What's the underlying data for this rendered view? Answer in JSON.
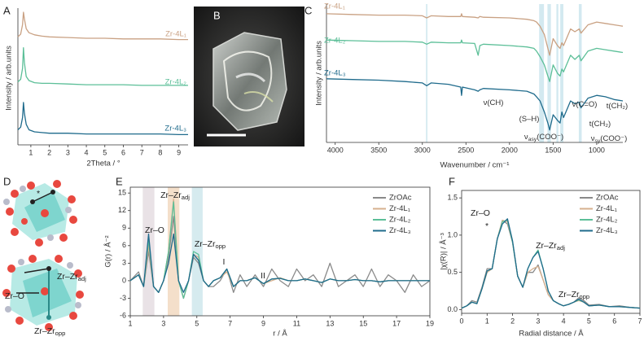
{
  "chart_data": [
    {
      "type": "line",
      "panel_label": "A",
      "xlabel": "2Theta / °",
      "ylabel": "Intensity / arb.units",
      "xlim": [
        0.3,
        9.5
      ],
      "xticks": [
        1,
        2,
        3,
        4,
        5,
        6,
        7,
        8,
        9
      ],
      "ylim": [
        0,
        10
      ],
      "x": [
        0.3,
        0.45,
        0.55,
        0.6,
        0.65,
        0.75,
        0.9,
        1.2,
        1.6,
        2,
        3,
        4,
        5,
        6,
        7,
        8,
        9,
        9.5
      ],
      "series": [
        {
          "name": "Zr-4L₁",
          "color": "#c9a183",
          "values": [
            7.9,
            8.1,
            8.8,
            9.7,
            9.2,
            8.5,
            8.2,
            8.05,
            7.95,
            7.9,
            7.85,
            7.8,
            7.8,
            7.75,
            7.75,
            7.75,
            7.7,
            7.7
          ]
        },
        {
          "name": "Zr-4L₂",
          "color": "#5cbf98",
          "values": [
            4.6,
            4.8,
            5.6,
            7.1,
            6.0,
            5.0,
            4.7,
            4.55,
            4.5,
            4.5,
            4.45,
            4.4,
            4.4,
            4.4,
            4.35,
            4.35,
            4.35,
            4.35
          ]
        },
        {
          "name": "Zr-4L₃",
          "color": "#1f6b8c",
          "values": [
            1.1,
            1.3,
            2.0,
            3.1,
            2.3,
            1.5,
            1.1,
            0.95,
            0.9,
            0.85,
            0.85,
            0.8,
            0.8,
            0.8,
            0.8,
            0.8,
            0.75,
            0.75
          ]
        }
      ]
    },
    {
      "type": "line",
      "panel_label": "C",
      "xlabel": "Wavenumber / cm⁻¹",
      "ylabel": "Intensity / arb.units",
      "xlim": [
        4100,
        700
      ],
      "xticks": [
        4000,
        3500,
        3000,
        2500,
        2000,
        1500,
        1000
      ],
      "ylim": [
        0,
        10
      ],
      "highlight_bands": [
        {
          "from": 2958,
          "to": 2942,
          "color": "#d3e9f0"
        },
        {
          "from": 1660,
          "to": 1605,
          "color": "#d3e9f0"
        },
        {
          "from": 1565,
          "to": 1525,
          "color": "#d3e9f0"
        },
        {
          "from": 1462,
          "to": 1440,
          "color": "#d3e9f0"
        },
        {
          "from": 1418,
          "to": 1382,
          "color": "#d3e9f0"
        },
        {
          "from": 1205,
          "to": 1172,
          "color": "#d3e9f0"
        }
      ],
      "x": [
        4100,
        3800,
        3500,
        3200,
        3000,
        2950,
        2900,
        2700,
        2560,
        2550,
        2540,
        2400,
        2360,
        2340,
        2300,
        2000,
        1800,
        1720,
        1690,
        1650,
        1600,
        1560,
        1540,
        1500,
        1450,
        1420,
        1400,
        1380,
        1300,
        1250,
        1200,
        1180,
        1100,
        1000,
        900,
        800,
        700
      ],
      "series": [
        {
          "name": "Zr-4L₁",
          "color": "#c9a183",
          "values": [
            9.3,
            9.25,
            9.2,
            9.2,
            9.15,
            9.0,
            9.15,
            9.1,
            9.1,
            9.3,
            9.1,
            9.05,
            9.0,
            9.1,
            9.05,
            9.0,
            8.9,
            8.8,
            8.7,
            8.4,
            7.8,
            6.8,
            6.3,
            7.5,
            7.0,
            6.8,
            7.2,
            7.0,
            8.2,
            8.0,
            8.2,
            7.9,
            8.5,
            8.7,
            8.6,
            8.5,
            8.4
          ]
        },
        {
          "name": "Zr-4L₂",
          "color": "#5cbf98",
          "values": [
            7.4,
            7.35,
            7.3,
            7.3,
            7.25,
            7.1,
            7.25,
            7.2,
            7.2,
            7.4,
            7.2,
            7.15,
            6.3,
            7.0,
            7.1,
            7.0,
            6.9,
            6.8,
            6.6,
            6.2,
            5.6,
            4.8,
            4.4,
            5.6,
            5.0,
            4.8,
            5.3,
            5.1,
            6.3,
            6.0,
            6.3,
            5.9,
            6.6,
            6.8,
            6.7,
            6.6,
            6.5
          ]
        },
        {
          "name": "Zr-4L₃",
          "color": "#1f6b8c",
          "values": [
            4.6,
            4.55,
            4.5,
            4.4,
            4.3,
            4.1,
            4.3,
            4.2,
            4.0,
            3.4,
            4.0,
            3.8,
            3.7,
            3.8,
            3.9,
            3.8,
            3.7,
            3.5,
            3.3,
            3.0,
            2.2,
            1.4,
            0.9,
            2.0,
            1.6,
            1.4,
            2.2,
            1.8,
            3.0,
            2.8,
            2.9,
            2.5,
            3.2,
            3.4,
            3.3,
            3.1,
            3.0
          ]
        }
      ],
      "annotations": [
        {
          "text": "ν(CH)"
        },
        {
          "text": "(S–H)"
        },
        {
          "text": "ν(C=O)"
        },
        {
          "text": "t(CH₂)"
        },
        {
          "text": "t(CH₂)"
        },
        {
          "text": "ν",
          "sub": "asy",
          "tail": "(COO⁻)"
        },
        {
          "text": "ν",
          "sub": "sy",
          "tail": "(COO⁻)"
        }
      ]
    },
    {
      "type": "line",
      "panel_label": "E",
      "xlabel": "r / Å",
      "ylabel": "G(r) / Å⁻²",
      "xlim": [
        1,
        19
      ],
      "xticks": [
        1,
        3,
        5,
        7,
        9,
        11,
        13,
        15,
        17,
        19
      ],
      "ylim": [
        -6,
        16
      ],
      "yticks": [
        -6,
        -3,
        0,
        3,
        6,
        9,
        12,
        15
      ],
      "highlight_bands": [
        {
          "from": 1.75,
          "to": 2.45,
          "color": "#e9e2e6"
        },
        {
          "from": 3.25,
          "to": 3.95,
          "color": "#f4dfca"
        },
        {
          "from": 4.7,
          "to": 5.35,
          "color": "#d6ebef"
        }
      ],
      "x": [
        1,
        1.5,
        1.8,
        2.1,
        2.4,
        2.7,
        3.0,
        3.3,
        3.6,
        3.9,
        4.2,
        4.5,
        4.8,
        5.1,
        5.4,
        5.7,
        6.0,
        6.4,
        6.8,
        7.2,
        7.6,
        8,
        8.5,
        9,
        9.5,
        10,
        10.5,
        11,
        11.5,
        12,
        12.5,
        13,
        13.5,
        14,
        14.5,
        15,
        15.5,
        16,
        16.5,
        17,
        17.5,
        18,
        18.5,
        19
      ],
      "series": [
        {
          "name": "ZrOAc",
          "color": "#8a8a8a",
          "values": [
            0,
            1.5,
            -1,
            5,
            -1,
            -2,
            0,
            4,
            11,
            0,
            -3,
            0,
            4,
            3,
            0,
            -1,
            -1,
            0,
            2,
            -2,
            1,
            -1,
            1,
            -1,
            2,
            0,
            -1,
            2,
            0,
            1,
            -1,
            3,
            -1,
            0,
            1,
            -1,
            2,
            -1,
            1,
            0,
            -2,
            1,
            -1,
            0
          ]
        },
        {
          "name": "Zr-4L₁",
          "color": "#d6b08e",
          "values": [
            0,
            1,
            -1,
            6,
            -1,
            -2,
            0,
            5,
            14,
            0,
            -3,
            0,
            4.5,
            4,
            0,
            -1,
            0,
            0.5,
            1.5,
            -1,
            0,
            0,
            0.5,
            -0.5,
            0,
            0.5,
            0,
            0,
            0.3,
            0,
            -0.3,
            0.3,
            0,
            0,
            0.2,
            0,
            0,
            -0.2,
            0,
            0,
            0,
            0,
            0,
            0
          ]
        },
        {
          "name": "Zr-4L₂",
          "color": "#5cbf98",
          "values": [
            0,
            1,
            -1,
            7,
            -1,
            -2,
            0,
            5,
            13.5,
            0,
            -3,
            0,
            5,
            4.5,
            0,
            -1,
            0,
            0.5,
            2,
            -1,
            0,
            0,
            0.5,
            -0.5,
            0.3,
            0.4,
            0,
            0,
            0.3,
            0,
            -0.3,
            0.3,
            0,
            0,
            0.2,
            0,
            0,
            -0.2,
            0,
            0,
            0,
            0,
            0,
            0
          ]
        },
        {
          "name": "Zr-4L₃",
          "color": "#1f6b8c",
          "values": [
            0,
            1,
            -1,
            8,
            -1,
            -2,
            0,
            3,
            8,
            0,
            -2,
            0,
            4.5,
            3.5,
            0,
            -1,
            0,
            0.5,
            2,
            -1,
            0,
            0,
            0.5,
            -0.5,
            0.3,
            0.4,
            0,
            0,
            0.3,
            0,
            -0.3,
            0.3,
            0,
            0,
            0.2,
            0,
            0,
            -0.2,
            0,
            0,
            0,
            0,
            0,
            0
          ]
        }
      ],
      "annotations": [
        {
          "text": "Zr–O"
        },
        {
          "text": "Zr–Zr",
          "sub": "adj"
        },
        {
          "text": "Zr–Zr",
          "sub": "opp"
        },
        {
          "text": "I"
        },
        {
          "text": "II"
        }
      ]
    },
    {
      "type": "line",
      "panel_label": "F",
      "xlabel": "Radial distance / Å",
      "ylabel": "|χ(R)| / Å⁻³",
      "xlim": [
        0,
        7
      ],
      "xticks": [
        0,
        1,
        2,
        3,
        4,
        5,
        6,
        7
      ],
      "ylim": [
        -0.05,
        1.6
      ],
      "yticks": [
        {
          "value": 0,
          "label": "0.0"
        },
        0.5,
        {
          "value": 1,
          "label": "1.0"
        },
        1.5
      ],
      "x": [
        0,
        0.2,
        0.4,
        0.6,
        0.8,
        1.0,
        1.2,
        1.4,
        1.6,
        1.8,
        2.0,
        2.2,
        2.4,
        2.6,
        2.8,
        3.0,
        3.2,
        3.4,
        3.6,
        3.8,
        4.0,
        4.2,
        4.4,
        4.6,
        4.8,
        5.0,
        5.4,
        5.8,
        6.2,
        6.6,
        7.0
      ],
      "series": [
        {
          "name": "ZrOAc",
          "color": "#8a8a8a",
          "values": [
            0.02,
            0.05,
            0.12,
            0.1,
            0.3,
            0.55,
            0.55,
            0.95,
            1.2,
            1.15,
            0.9,
            0.45,
            0.3,
            0.5,
            0.5,
            0.6,
            0.4,
            0.2,
            0.12,
            0.08,
            0.05,
            0.07,
            0.1,
            0.16,
            0.12,
            0.06,
            0.07,
            0.04,
            0.05,
            0.03,
            0.02
          ]
        },
        {
          "name": "Zr-4L₁",
          "color": "#d6b08e",
          "values": [
            0.02,
            0.05,
            0.1,
            0.08,
            0.28,
            0.5,
            0.55,
            0.95,
            1.2,
            1.18,
            0.9,
            0.45,
            0.3,
            0.5,
            0.55,
            0.58,
            0.4,
            0.2,
            0.12,
            0.08,
            0.05,
            0.07,
            0.1,
            0.12,
            0.1,
            0.05,
            0.06,
            0.04,
            0.04,
            0.03,
            0.02
          ]
        },
        {
          "name": "Zr-4L₂",
          "color": "#5cbf98",
          "values": [
            0.02,
            0.05,
            0.1,
            0.08,
            0.28,
            0.52,
            0.55,
            0.95,
            1.18,
            1.2,
            0.9,
            0.45,
            0.3,
            0.55,
            0.7,
            0.8,
            0.55,
            0.25,
            0.12,
            0.08,
            0.05,
            0.07,
            0.1,
            0.13,
            0.1,
            0.05,
            0.06,
            0.04,
            0.04,
            0.03,
            0.02
          ]
        },
        {
          "name": "Zr-4L₃",
          "color": "#1f6b8c",
          "values": [
            0.02,
            0.05,
            0.1,
            0.08,
            0.28,
            0.52,
            0.55,
            0.95,
            1.15,
            1.22,
            0.92,
            0.45,
            0.3,
            0.55,
            0.7,
            0.78,
            0.55,
            0.25,
            0.12,
            0.08,
            0.05,
            0.07,
            0.1,
            0.14,
            0.1,
            0.05,
            0.06,
            0.04,
            0.04,
            0.03,
            0.02
          ]
        }
      ],
      "annotations": [
        {
          "text": "Zr–O"
        },
        {
          "text": "*"
        },
        {
          "text": "Zr–Zr",
          "sub": "adj"
        },
        {
          "text": "Zr–Zr",
          "sub": "opp"
        }
      ]
    }
  ],
  "image_panel": {
    "label": "B"
  },
  "diagram": {
    "label": "D",
    "labels": [
      {
        "text": "*"
      },
      {
        "text": "Zr–Zr",
        "sub": "adj"
      },
      {
        "text": "Zr–O"
      },
      {
        "text": "Zr–Zr",
        "sub": "opp"
      }
    ]
  }
}
